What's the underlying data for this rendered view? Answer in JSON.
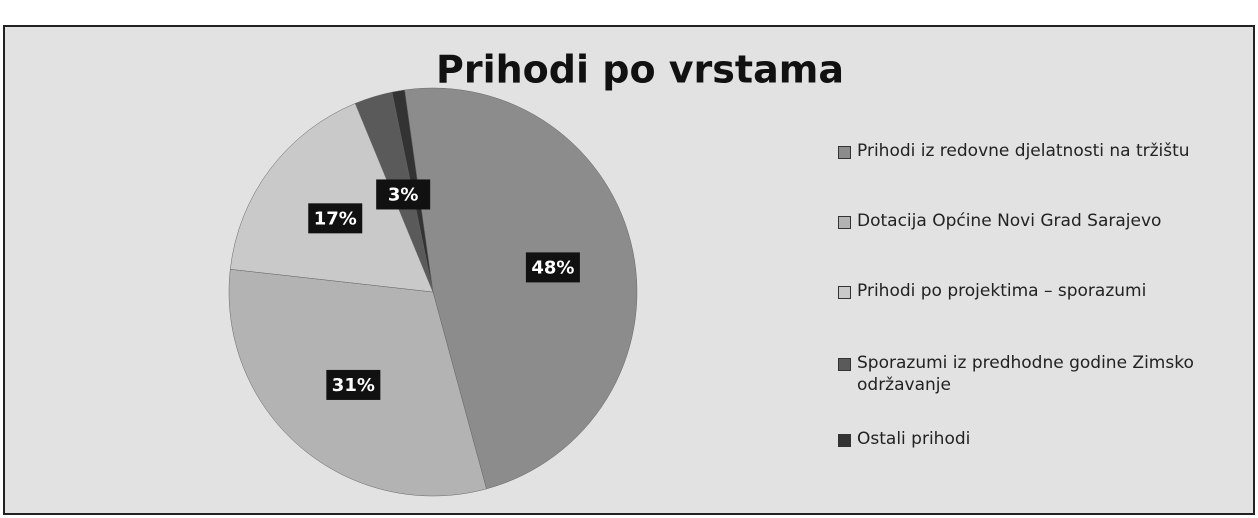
{
  "chart_data": {
    "type": "pie",
    "title": "Prihodi po vrstama",
    "categories": [
      "Prihodi iz redovne djelatnosti na tržištu",
      "Dotacija Općine Novi Grad Sarajevo",
      "Prihodi po projektima – sporazumi",
      "Sporazumi iz predhodne godine  Zimsko održavanje",
      "Ostali prihodi"
    ],
    "values": [
      48,
      31,
      17,
      3,
      1
    ],
    "value_labels": [
      "48%",
      "31%",
      "17%",
      "3%",
      null
    ],
    "colors": [
      "#8c8c8c",
      "#b3b3b3",
      "#c9c9c9",
      "#5a5a5a",
      "#333333"
    ],
    "legend": "right"
  }
}
